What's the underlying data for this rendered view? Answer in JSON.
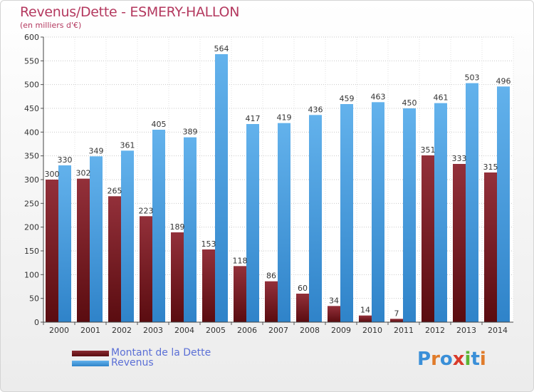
{
  "chart_data": {
    "type": "bar",
    "title": "Revenus/Dette - ESMERY-HALLON",
    "subtitle": "(en milliers d'€)",
    "xlabel": "",
    "ylabel": "",
    "ylim": [
      0,
      600
    ],
    "yticks": [
      0,
      50,
      100,
      150,
      200,
      250,
      300,
      350,
      400,
      450,
      500,
      550,
      600
    ],
    "grid": true,
    "categories": [
      "2000",
      "2001",
      "2002",
      "2003",
      "2004",
      "2005",
      "2006",
      "2007",
      "2008",
      "2009",
      "2010",
      "2011",
      "2012",
      "2013",
      "2014"
    ],
    "series": [
      {
        "name": "Montant de la Dette",
        "color": "#7b2026",
        "values": [
          300,
          302,
          265,
          223,
          189,
          153,
          118,
          86,
          60,
          34,
          14,
          7,
          351,
          333,
          315
        ]
      },
      {
        "name": "Revenus",
        "color": "#4a9fe0",
        "values": [
          330,
          349,
          361,
          405,
          389,
          564,
          417,
          419,
          436,
          459,
          463,
          450,
          461,
          503,
          496
        ]
      }
    ],
    "legend": "bottom-left"
  },
  "brand": {
    "letters": [
      "P",
      "r",
      "o",
      "x",
      "i",
      "t",
      "i"
    ],
    "colors": [
      "#3a8fd8",
      "#e07b2a",
      "#3a8fd8",
      "#d93a2a",
      "#5bb533",
      "#3a8fd8",
      "#e07b2a"
    ]
  }
}
